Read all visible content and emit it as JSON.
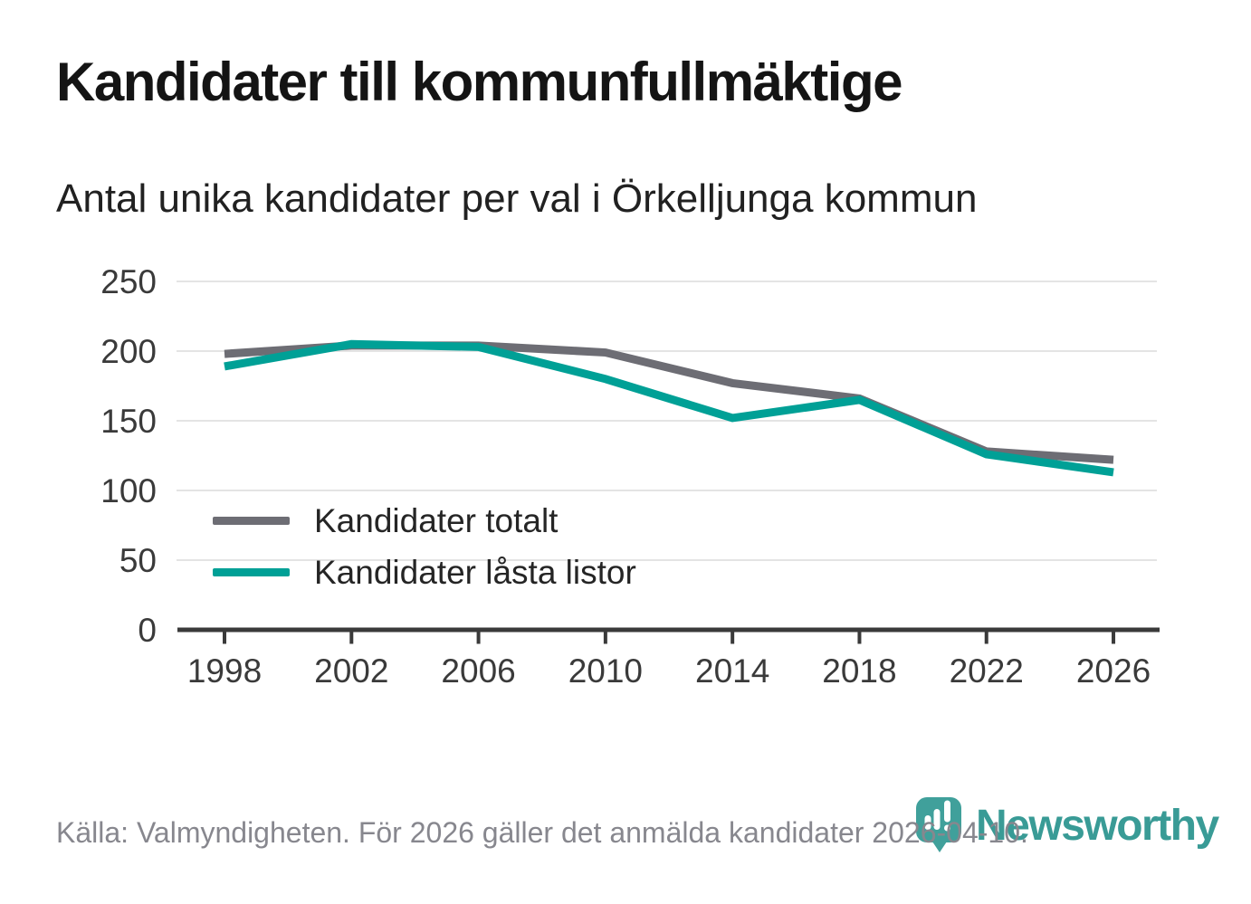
{
  "header": {
    "title": "Kandidater till kommunfullmäktige",
    "subtitle": "Antal unika kandidater per val i Örkelljunga kommun"
  },
  "chart_data": {
    "type": "line",
    "title": "Kandidater till kommunfullmäktige",
    "subtitle": "Antal unika kandidater per val i Örkelljunga kommun",
    "categories": [
      "1998",
      "2002",
      "2006",
      "2010",
      "2014",
      "2018",
      "2022",
      "2026"
    ],
    "series": [
      {
        "name": "Kandidater totalt",
        "color": "#6d6d74",
        "values": [
          198,
          204,
          204,
          199,
          177,
          166,
          128,
          122
        ]
      },
      {
        "name": "Kandidater låsta listor",
        "color": "#00a096",
        "values": [
          189,
          205,
          203,
          180,
          152,
          165,
          126,
          113
        ]
      }
    ],
    "xlabel": "",
    "ylabel": "",
    "ylim": [
      0,
      250
    ],
    "yticks": [
      0,
      50,
      100,
      150,
      200,
      250
    ],
    "grid": true,
    "legend_position": "inside-left-bottom"
  },
  "footer": {
    "source": "Källa: Valmyndigheten. För 2026 gäller det anmälda kandidater 2026-04-10.",
    "brand": "Newsworthy"
  },
  "colors": {
    "series_total": "#6d6d74",
    "series_locked_lists": "#00a096",
    "gridline": "#e4e4e4",
    "axis": "#3a3a3a",
    "tick_label": "#3a3a3a",
    "source_text": "#87878e",
    "brand_teal": "#399b96",
    "logo_pin": "#40a09b"
  }
}
